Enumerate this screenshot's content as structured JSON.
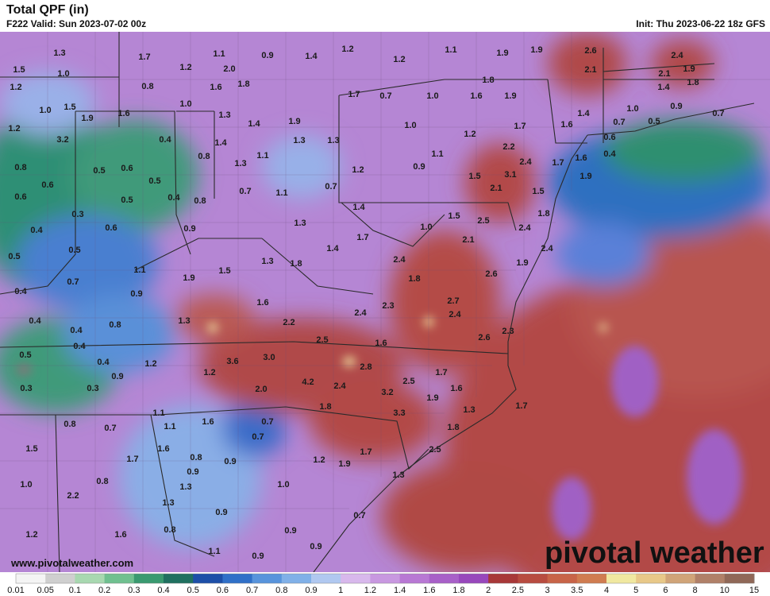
{
  "header": {
    "title": "Total QPF (in)",
    "valid": "F222 Valid: Sun 2023-07-02 00z",
    "init": "Init: Thu 2023-06-22 18z GFS"
  },
  "map": {
    "labels": [
      "1.3",
      "1.7",
      "1.1",
      "0.9",
      "1.4",
      "1.2",
      "1.2",
      "1.1",
      "1.9",
      "1.9",
      "2.6",
      "2.4",
      "1.5",
      "1.0",
      "1.2",
      "2.0",
      "2.1",
      "2.1",
      "1.9",
      "1.2",
      "0.8",
      "1.6",
      "1.8",
      "1.8",
      "1.4",
      "1.8",
      "1.0",
      "1.5",
      "1.0",
      "1.7",
      "0.7",
      "1.0",
      "1.6",
      "1.9",
      "1.0",
      "0.9",
      "1.9",
      "1.6",
      "1.3",
      "1.4",
      "1.9",
      "1.4",
      "0.7",
      "0.5",
      "0.7",
      "1.2",
      "1.0",
      "1.2",
      "1.7",
      "1.6",
      "0.6",
      "3.2",
      "0.4",
      "1.4",
      "1.3",
      "1.3",
      "2.2",
      "0.4",
      "0.8",
      "1.1",
      "1.1",
      "1.6",
      "2.4",
      "1.7",
      "0.8",
      "0.5",
      "0.6",
      "1.3",
      "1.2",
      "0.9",
      "1.5",
      "3.1",
      "1.9",
      "0.6",
      "0.5",
      "0.7",
      "1.1",
      "0.7",
      "2.1",
      "1.5",
      "0.6",
      "0.5",
      "0.4",
      "0.8",
      "1.4",
      "1.8",
      "0.3",
      "1.5",
      "2.5",
      "0.4",
      "0.6",
      "0.9",
      "1.3",
      "1.0",
      "2.4",
      "0.5",
      "1.7",
      "2.1",
      "1.4",
      "0.5",
      "1.3",
      "1.8",
      "2.4",
      "2.4",
      "1.9",
      "0.7",
      "1.1",
      "1.9",
      "1.5",
      "1.8",
      "2.6",
      "0.4",
      "0.9",
      "1.6",
      "2.3",
      "2.7",
      "0.4",
      "0.8",
      "1.3",
      "2.2",
      "2.4",
      "2.4",
      "0.4",
      "2.5",
      "2.3",
      "0.4",
      "1.6",
      "2.6",
      "0.5",
      "3.6",
      "3.0",
      "2.8",
      "1.7",
      "0.4",
      "1.2",
      "1.2",
      "0.3",
      "0.3",
      "0.9",
      "2.0",
      "4.2",
      "2.4",
      "2.5",
      "1.6",
      "3.2",
      "1.9",
      "1.8",
      "3.3",
      "1.3",
      "1.7",
      "1.1",
      "0.8",
      "0.7",
      "1.1",
      "1.6",
      "0.7",
      "0.7",
      "1.8",
      "1.5",
      "1.6",
      "0.8",
      "2.5",
      "1.7",
      "1.2",
      "1.9",
      "1.7",
      "0.9",
      "0.9",
      "0.8",
      "1.3",
      "1.0",
      "1.3",
      "1.0",
      "2.2",
      "1.3",
      "0.9",
      "0.7",
      "1.2",
      "1.6",
      "0.8",
      "0.9",
      "1.1",
      "0.9",
      "0.9"
    ],
    "url": "www.pivotalweather.com",
    "watermark": "pivotal weather"
  },
  "colorbar": {
    "labels": [
      "0.01",
      "0.05",
      "0.1",
      "0.2",
      "0.3",
      "0.4",
      "0.5",
      "0.6",
      "0.7",
      "0.8",
      "0.9",
      "1",
      "1.2",
      "1.4",
      "1.6",
      "1.8",
      "2",
      "2.5",
      "3",
      "3.5",
      "4",
      "5",
      "6",
      "8",
      "10",
      "15"
    ],
    "colors": [
      "#f4f4f4",
      "#cfcfcf",
      "#a8d8b0",
      "#70c090",
      "#3a9a70",
      "#207060",
      "#1d4fa8",
      "#3070c8",
      "#5894dc",
      "#80b0e8",
      "#b0c8f0",
      "#d8b8ec",
      "#c898e0",
      "#b878d4",
      "#a860c8",
      "#9848bc",
      "#a83838",
      "#b84c40",
      "#c86448",
      "#d07c50",
      "#f0e8a0",
      "#e8c888",
      "#d0a478",
      "#b08068",
      "#906858"
    ]
  }
}
